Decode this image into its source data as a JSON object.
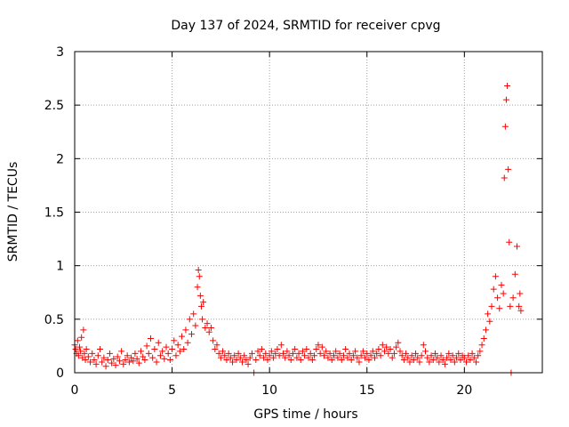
{
  "chart_data": {
    "type": "scatter",
    "title": "Day 137 of 2024, SRMTID for receiver cpvg",
    "xlabel": "GPS time / hours",
    "ylabel": "SRMTID / TECUs",
    "xlim": [
      0,
      24
    ],
    "ylim": [
      0,
      3
    ],
    "xticks": [
      0,
      5,
      10,
      15,
      20
    ],
    "yticks": [
      0,
      0.5,
      1,
      1.5,
      2,
      2.5,
      3
    ],
    "xtick_labels": [
      "0",
      "5",
      "10",
      "15",
      "20"
    ],
    "ytick_labels": [
      "0",
      "0.5",
      "1",
      "1.5",
      "2",
      "2.5",
      "3"
    ],
    "grid": true,
    "marker": "+",
    "color": "#ff0000",
    "series": [
      {
        "name": "SRMTID",
        "points": [
          [
            0.0,
            0.26
          ],
          [
            0.05,
            0.22
          ],
          [
            0.1,
            0.18
          ],
          [
            0.15,
            0.3
          ],
          [
            0.2,
            0.16
          ],
          [
            0.25,
            0.24
          ],
          [
            0.3,
            0.2
          ],
          [
            0.35,
            0.33
          ],
          [
            0.4,
            0.14
          ],
          [
            0.45,
            0.4
          ],
          [
            0.5,
            0.18
          ],
          [
            0.55,
            0.12
          ],
          [
            0.6,
            0.22
          ],
          [
            0.7,
            0.15
          ],
          [
            0.8,
            0.1
          ],
          [
            0.9,
            0.18
          ],
          [
            1.0,
            0.12
          ],
          [
            1.1,
            0.08
          ],
          [
            1.2,
            0.16
          ],
          [
            1.3,
            0.22
          ],
          [
            1.4,
            0.1
          ],
          [
            1.5,
            0.14
          ],
          [
            1.6,
            0.06
          ],
          [
            1.7,
            0.12
          ],
          [
            1.8,
            0.18
          ],
          [
            1.9,
            0.09
          ],
          [
            2.0,
            0.13
          ],
          [
            2.1,
            0.07
          ],
          [
            2.2,
            0.15
          ],
          [
            2.3,
            0.11
          ],
          [
            2.4,
            0.2
          ],
          [
            2.5,
            0.08
          ],
          [
            2.6,
            0.12
          ],
          [
            2.7,
            0.16
          ],
          [
            2.8,
            0.1
          ],
          [
            2.9,
            0.14
          ],
          [
            3.0,
            0.11
          ],
          [
            3.1,
            0.18
          ],
          [
            3.2,
            0.13
          ],
          [
            3.3,
            0.09
          ],
          [
            3.4,
            0.2
          ],
          [
            3.5,
            0.15
          ],
          [
            3.6,
            0.12
          ],
          [
            3.7,
            0.25
          ],
          [
            3.8,
            0.18
          ],
          [
            3.9,
            0.32
          ],
          [
            4.0,
            0.14
          ],
          [
            4.1,
            0.22
          ],
          [
            4.2,
            0.1
          ],
          [
            4.3,
            0.28
          ],
          [
            4.4,
            0.16
          ],
          [
            4.5,
            0.2
          ],
          [
            4.6,
            0.13
          ],
          [
            4.7,
            0.24
          ],
          [
            4.8,
            0.18
          ],
          [
            4.9,
            0.12
          ],
          [
            5.0,
            0.22
          ],
          [
            5.1,
            0.3
          ],
          [
            5.2,
            0.16
          ],
          [
            5.3,
            0.26
          ],
          [
            5.4,
            0.2
          ],
          [
            5.5,
            0.34
          ],
          [
            5.6,
            0.22
          ],
          [
            5.7,
            0.4
          ],
          [
            5.8,
            0.28
          ],
          [
            5.9,
            0.5
          ],
          [
            6.0,
            0.36
          ],
          [
            6.1,
            0.55
          ],
          [
            6.2,
            0.44
          ],
          [
            6.3,
            0.8
          ],
          [
            6.35,
            0.96
          ],
          [
            6.4,
            0.9
          ],
          [
            6.45,
            0.72
          ],
          [
            6.5,
            0.62
          ],
          [
            6.55,
            0.5
          ],
          [
            6.6,
            0.66
          ],
          [
            6.7,
            0.42
          ],
          [
            6.8,
            0.46
          ],
          [
            6.9,
            0.38
          ],
          [
            7.0,
            0.42
          ],
          [
            7.1,
            0.3
          ],
          [
            7.2,
            0.22
          ],
          [
            7.3,
            0.26
          ],
          [
            7.4,
            0.18
          ],
          [
            7.5,
            0.14
          ],
          [
            7.6,
            0.2
          ],
          [
            7.7,
            0.16
          ],
          [
            7.8,
            0.12
          ],
          [
            7.9,
            0.18
          ],
          [
            8.0,
            0.14
          ],
          [
            8.1,
            0.1
          ],
          [
            8.2,
            0.16
          ],
          [
            8.3,
            0.12
          ],
          [
            8.4,
            0.18
          ],
          [
            8.5,
            0.14
          ],
          [
            8.6,
            0.1
          ],
          [
            8.7,
            0.16
          ],
          [
            8.8,
            0.12
          ],
          [
            8.9,
            0.08
          ],
          [
            9.0,
            0.14
          ],
          [
            9.1,
            0.18
          ],
          [
            9.2,
            0.0
          ],
          [
            9.3,
            0.12
          ],
          [
            9.4,
            0.2
          ],
          [
            9.5,
            0.16
          ],
          [
            9.6,
            0.22
          ],
          [
            9.7,
            0.14
          ],
          [
            9.8,
            0.18
          ],
          [
            9.9,
            0.12
          ],
          [
            10.0,
            0.16
          ],
          [
            10.1,
            0.2
          ],
          [
            10.2,
            0.14
          ],
          [
            10.3,
            0.18
          ],
          [
            10.4,
            0.22
          ],
          [
            10.5,
            0.16
          ],
          [
            10.6,
            0.26
          ],
          [
            10.7,
            0.18
          ],
          [
            10.8,
            0.14
          ],
          [
            10.9,
            0.2
          ],
          [
            11.0,
            0.16
          ],
          [
            11.1,
            0.12
          ],
          [
            11.2,
            0.18
          ],
          [
            11.3,
            0.22
          ],
          [
            11.4,
            0.14
          ],
          [
            11.5,
            0.18
          ],
          [
            11.6,
            0.12
          ],
          [
            11.7,
            0.2
          ],
          [
            11.8,
            0.16
          ],
          [
            11.9,
            0.22
          ],
          [
            12.0,
            0.14
          ],
          [
            12.1,
            0.18
          ],
          [
            12.2,
            0.12
          ],
          [
            12.3,
            0.16
          ],
          [
            12.4,
            0.22
          ],
          [
            12.5,
            0.26
          ],
          [
            12.6,
            0.18
          ],
          [
            12.7,
            0.24
          ],
          [
            12.8,
            0.16
          ],
          [
            12.9,
            0.2
          ],
          [
            13.0,
            0.14
          ],
          [
            13.1,
            0.18
          ],
          [
            13.2,
            0.12
          ],
          [
            13.3,
            0.16
          ],
          [
            13.4,
            0.2
          ],
          [
            13.5,
            0.14
          ],
          [
            13.6,
            0.18
          ],
          [
            13.7,
            0.12
          ],
          [
            13.8,
            0.16
          ],
          [
            13.9,
            0.22
          ],
          [
            14.0,
            0.14
          ],
          [
            14.1,
            0.18
          ],
          [
            14.2,
            0.12
          ],
          [
            14.3,
            0.16
          ],
          [
            14.4,
            0.2
          ],
          [
            14.5,
            0.14
          ],
          [
            14.6,
            0.1
          ],
          [
            14.7,
            0.16
          ],
          [
            14.8,
            0.2
          ],
          [
            14.9,
            0.14
          ],
          [
            15.0,
            0.18
          ],
          [
            15.1,
            0.12
          ],
          [
            15.2,
            0.16
          ],
          [
            15.3,
            0.2
          ],
          [
            15.4,
            0.14
          ],
          [
            15.5,
            0.18
          ],
          [
            15.6,
            0.22
          ],
          [
            15.7,
            0.16
          ],
          [
            15.8,
            0.26
          ],
          [
            15.9,
            0.2
          ],
          [
            16.0,
            0.24
          ],
          [
            16.1,
            0.18
          ],
          [
            16.2,
            0.22
          ],
          [
            16.3,
            0.14
          ],
          [
            16.4,
            0.18
          ],
          [
            16.5,
            0.24
          ],
          [
            16.6,
            0.28
          ],
          [
            16.7,
            0.2
          ],
          [
            16.8,
            0.16
          ],
          [
            16.9,
            0.12
          ],
          [
            17.0,
            0.18
          ],
          [
            17.1,
            0.14
          ],
          [
            17.2,
            0.1
          ],
          [
            17.3,
            0.16
          ],
          [
            17.4,
            0.12
          ],
          [
            17.5,
            0.18
          ],
          [
            17.6,
            0.14
          ],
          [
            17.7,
            0.1
          ],
          [
            17.8,
            0.16
          ],
          [
            17.9,
            0.26
          ],
          [
            18.0,
            0.2
          ],
          [
            18.1,
            0.14
          ],
          [
            18.2,
            0.1
          ],
          [
            18.3,
            0.16
          ],
          [
            18.4,
            0.12
          ],
          [
            18.5,
            0.18
          ],
          [
            18.6,
            0.14
          ],
          [
            18.7,
            0.1
          ],
          [
            18.8,
            0.16
          ],
          [
            18.9,
            0.12
          ],
          [
            19.0,
            0.08
          ],
          [
            19.1,
            0.14
          ],
          [
            19.2,
            0.18
          ],
          [
            19.3,
            0.12
          ],
          [
            19.4,
            0.16
          ],
          [
            19.5,
            0.1
          ],
          [
            19.6,
            0.14
          ],
          [
            19.7,
            0.18
          ],
          [
            19.8,
            0.12
          ],
          [
            19.9,
            0.16
          ],
          [
            20.0,
            0.14
          ],
          [
            20.1,
            0.1
          ],
          [
            20.2,
            0.16
          ],
          [
            20.3,
            0.12
          ],
          [
            20.4,
            0.18
          ],
          [
            20.5,
            0.14
          ],
          [
            20.6,
            0.1
          ],
          [
            20.7,
            0.16
          ],
          [
            20.8,
            0.2
          ],
          [
            20.9,
            0.26
          ],
          [
            21.0,
            0.32
          ],
          [
            21.1,
            0.4
          ],
          [
            21.2,
            0.55
          ],
          [
            21.3,
            0.48
          ],
          [
            21.4,
            0.62
          ],
          [
            21.5,
            0.78
          ],
          [
            21.6,
            0.9
          ],
          [
            21.7,
            0.7
          ],
          [
            21.8,
            0.6
          ],
          [
            21.9,
            0.82
          ],
          [
            22.0,
            0.74
          ],
          [
            22.05,
            1.82
          ],
          [
            22.1,
            2.3
          ],
          [
            22.15,
            2.55
          ],
          [
            22.2,
            2.68
          ],
          [
            22.25,
            1.9
          ],
          [
            22.3,
            1.22
          ],
          [
            22.35,
            0.62
          ],
          [
            22.4,
            0.0
          ],
          [
            22.5,
            0.7
          ],
          [
            22.6,
            0.92
          ],
          [
            22.7,
            1.18
          ],
          [
            22.8,
            0.62
          ],
          [
            22.85,
            0.74
          ],
          [
            22.9,
            0.58
          ]
        ]
      }
    ]
  }
}
